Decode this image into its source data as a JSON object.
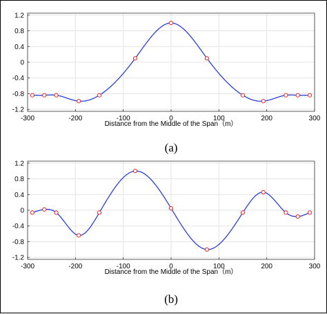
{
  "chart_data": [
    {
      "type": "line",
      "panel_label": "(a)",
      "xlabel": "Distance from the Middle of the Span（m）",
      "ylabel": "",
      "xlim": [
        -300,
        300
      ],
      "ylim": [
        -1.25,
        1.25
      ],
      "xticks": [
        "-300",
        "-200",
        "-100",
        "0",
        "100",
        "200",
        "300"
      ],
      "yticks": [
        "1.2",
        "0.8",
        "0.4",
        "0",
        "-0.4",
        "-0.8",
        "-1.2"
      ],
      "grid": true,
      "colors": {
        "curve": "#2a3fd6",
        "markers": "#e8232a"
      },
      "x": [
        -290,
        -265,
        -240,
        -193,
        -150,
        -75,
        0,
        75,
        150,
        193,
        240,
        265,
        290
      ],
      "values": [
        -0.84,
        -0.84,
        -0.84,
        -0.99,
        -0.84,
        0.1,
        1.0,
        0.1,
        -0.84,
        -0.99,
        -0.84,
        -0.84,
        -0.84
      ]
    },
    {
      "type": "line",
      "panel_label": "(b)",
      "xlabel": "Distance from the Middle of the Span（m）",
      "ylabel": "",
      "xlim": [
        -300,
        300
      ],
      "ylim": [
        -1.25,
        1.25
      ],
      "xticks": [
        "-300",
        "-200",
        "-100",
        "0",
        "100",
        "200",
        "300"
      ],
      "yticks": [
        "1.2",
        "0.8",
        "0.4",
        "0",
        "-0.4",
        "-0.8",
        "-1.2"
      ],
      "grid": true,
      "colors": {
        "curve": "#2a3fd6",
        "markers": "#e8232a"
      },
      "x": [
        -290,
        -265,
        -240,
        -193,
        -150,
        -75,
        0,
        75,
        150,
        193,
        240,
        265,
        290
      ],
      "values": [
        -0.06,
        0.02,
        -0.06,
        -0.64,
        -0.06,
        1.0,
        0.05,
        -1.0,
        -0.06,
        0.46,
        -0.06,
        -0.16,
        -0.06
      ]
    }
  ]
}
